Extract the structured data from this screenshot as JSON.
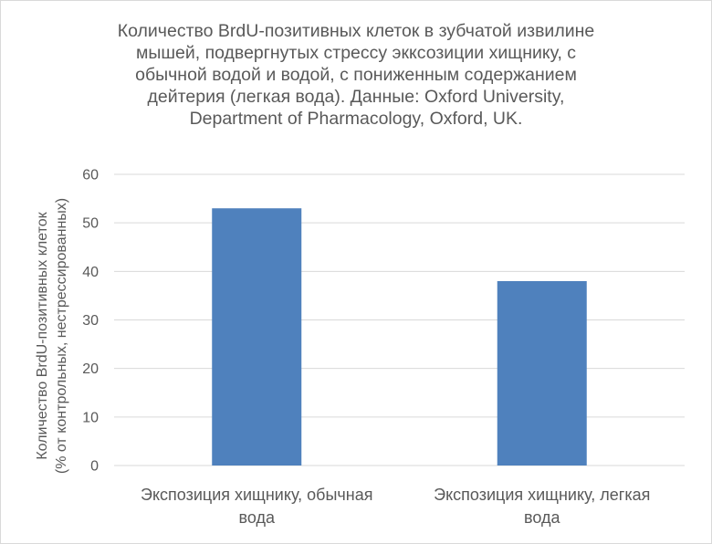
{
  "chart_data": {
    "type": "bar",
    "title_lines": [
      "Количество BrdU-позитивных клеток в зубчатой извилине",
      "мышей, подвергнутых стрессу экксозиции хищнику, с",
      "обычной водой и водой, с пониженным содержанием",
      "дейтерия (легкая вода). Данные: Oxford University,",
      "Department of Pharmacology, Oxford, UK."
    ],
    "categories": [
      [
        "Экспозиция хищнику, обычная",
        "вода"
      ],
      [
        "Экспозиция хищнику, легкая",
        "вода"
      ]
    ],
    "values": [
      53,
      38
    ],
    "ylabel_lines": [
      "Количество BrdU-позитивных клеток",
      "(% от контрольных, нестрессированных)"
    ],
    "ylim": [
      0,
      60
    ],
    "yticks": [
      "0",
      "10",
      "20",
      "30",
      "40",
      "50",
      "60"
    ],
    "grid": true,
    "legend": "none",
    "bar_color": "#4f81bd",
    "grid_color": "#d9d9d9",
    "text_color": "#595959"
  }
}
